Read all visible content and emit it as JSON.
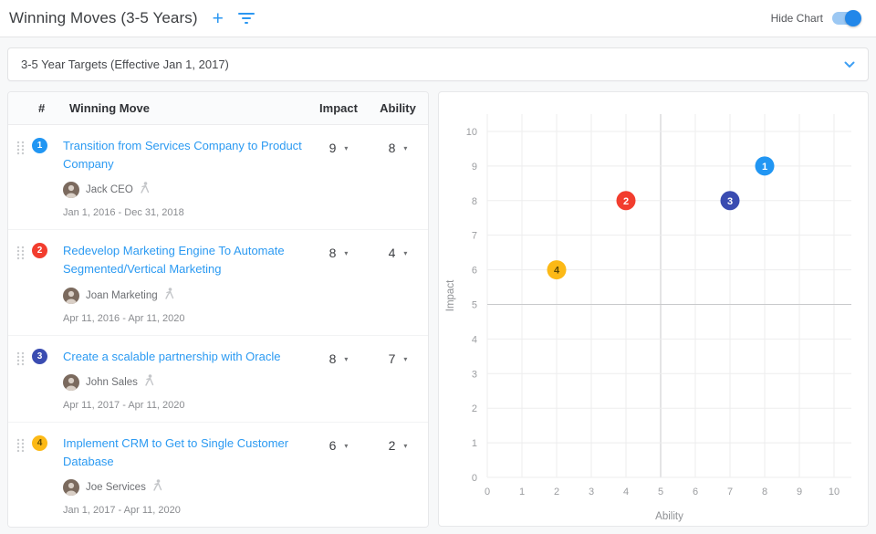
{
  "header": {
    "title": "Winning Moves (3-5 Years)",
    "hide_chart_label": "Hide Chart",
    "toggle_state": "on",
    "accent_color": "#2196f3"
  },
  "icons": {
    "plus": "+",
    "caret": "▾"
  },
  "target_selector": {
    "value": "3-5 Year Targets (Effective Jan 1, 2017)"
  },
  "table": {
    "columns": {
      "number": "#",
      "move": "Winning Move",
      "impact": "Impact",
      "ability": "Ability"
    },
    "rows": [
      {
        "number": "1",
        "color": "#2196f3",
        "text_color": "#ffffff",
        "title": "Transition from Services Company to Product Company",
        "owner": "Jack CEO",
        "dates": "Jan 1, 2016 - Dec 31, 2018",
        "impact": "9",
        "ability": "8"
      },
      {
        "number": "2",
        "color": "#f23d2e",
        "text_color": "#ffffff",
        "title": "Redevelop Marketing Engine To Automate Segmented/Vertical Marketing",
        "owner": "Joan Marketing",
        "dates": "Apr 11, 2016 - Apr 11, 2020",
        "impact": "8",
        "ability": "4"
      },
      {
        "number": "3",
        "color": "#3a4cb1",
        "text_color": "#ffffff",
        "title": "Create a scalable partnership with Oracle",
        "owner": "John Sales",
        "dates": "Apr 11, 2017 - Apr 11, 2020",
        "impact": "8",
        "ability": "7"
      },
      {
        "number": "4",
        "color": "#fcb916",
        "text_color": "#5e4a06",
        "title": "Implement CRM to Get to Single Customer Database",
        "owner": "Joe Services",
        "dates": "Jan 1, 2017 - Apr 11, 2020",
        "impact": "6",
        "ability": "2"
      }
    ]
  },
  "chart_data": {
    "type": "scatter",
    "xlabel": "Ability",
    "ylabel": "Impact",
    "xlim": [
      0,
      10.5
    ],
    "ylim": [
      0,
      10.5
    ],
    "xticks": [
      0,
      1,
      2,
      3,
      4,
      5,
      6,
      7,
      8,
      9,
      10
    ],
    "yticks": [
      0,
      1,
      2,
      3,
      4,
      5,
      6,
      7,
      8,
      9,
      10
    ],
    "grid": true,
    "legend": false,
    "quadrant_lines": {
      "x": 5,
      "y": 5
    },
    "points": [
      {
        "label": "1",
        "x": 8,
        "y": 9,
        "color": "#2196f3",
        "label_color": "#ffffff"
      },
      {
        "label": "2",
        "x": 4,
        "y": 8,
        "color": "#f23d2e",
        "label_color": "#ffffff"
      },
      {
        "label": "3",
        "x": 7,
        "y": 8,
        "color": "#3a4cb1",
        "label_color": "#ffffff"
      },
      {
        "label": "4",
        "x": 2,
        "y": 6,
        "color": "#fcb916",
        "label_color": "#5e4a06"
      }
    ]
  }
}
